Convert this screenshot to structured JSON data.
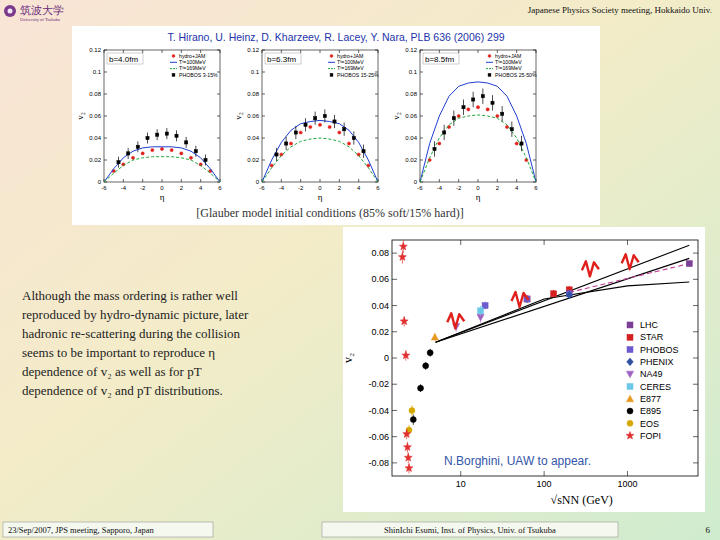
{
  "slide": {
    "logo": "筑波大学",
    "logo_sub": "University of Tsukuba",
    "header_right": "Japanese Physics Society meeting, Hokkaido Univ.",
    "reference": "T. Hirano, U. Heinz, D. Kharzeev, R. Lacey, Y. Nara, PLB 636 (2006) 299",
    "caption": "[Glauber model initial conditions (85% soft/15% hard)]",
    "text_lines": [
      "Although the mass ordering is rather well",
      "reproduced by hydro-dynamic picture, later",
      "hadronic re-scattering during the collision",
      "seems to be important to reproduce η",
      "dependence of v₂ as well as for pT",
      "dependence of v₂ and pT distributions."
    ],
    "footer_left": "23/Sep/2007, JPS meeting, Sapporo, Japan",
    "footer_center": "ShinIchi Esumi, Inst. of Physics, Univ. of Tsukuba",
    "page": "6"
  },
  "chart_data": [
    {
      "type": "scatter",
      "annotation": "b=4.0fm",
      "x_label": "η",
      "y_label": "v₂",
      "xlim": [
        -6,
        6
      ],
      "ylim": [
        0,
        0.12
      ],
      "xticks": [
        -6,
        -4,
        -2,
        0,
        2,
        4,
        6
      ],
      "yticks": [
        0,
        0.02,
        0.04,
        0.06,
        0.08,
        0.1,
        0.12
      ],
      "legend": "upper right",
      "series": [
        {
          "name": "hydro+JAM",
          "type": "scatter",
          "marker": "circle",
          "color": "#e0201c",
          "x": [
            -5,
            -4,
            -3,
            -2,
            -1,
            0,
            1,
            2,
            3,
            4,
            5
          ],
          "values": [
            0.01,
            0.016,
            0.022,
            0.026,
            0.029,
            0.03,
            0.029,
            0.026,
            0.022,
            0.016,
            0.01
          ]
        },
        {
          "name": "Tᶠ=100MeV",
          "type": "line",
          "line_style": "solid",
          "color": "#1f3fd0",
          "x": [
            -6,
            -5,
            -4,
            -3,
            -2,
            -1,
            0,
            1,
            2,
            3,
            4,
            5,
            6
          ],
          "values": [
            0.0,
            0.012,
            0.022,
            0.028,
            0.031,
            0.032,
            0.032,
            0.032,
            0.031,
            0.028,
            0.022,
            0.012,
            0.0
          ]
        },
        {
          "name": "Tᶠ=169MeV",
          "type": "line",
          "line_style": "dashed",
          "color": "#1fa63a",
          "x": [
            -6,
            -5,
            -4,
            -3,
            -2,
            -1,
            0,
            1,
            2,
            3,
            4,
            5,
            6
          ],
          "values": [
            0.0,
            0.008,
            0.015,
            0.02,
            0.022,
            0.023,
            0.023,
            0.023,
            0.022,
            0.02,
            0.015,
            0.008,
            0.0
          ]
        },
        {
          "name": "PHOBOS 3-15%",
          "type": "scatter",
          "marker": "square",
          "color": "#000000",
          "x": [
            -4.5,
            -3.5,
            -2.5,
            -1.5,
            -0.5,
            0.5,
            1.5,
            2.5,
            3.5,
            4.5
          ],
          "values": [
            0.018,
            0.026,
            0.032,
            0.04,
            0.043,
            0.044,
            0.042,
            0.036,
            0.028,
            0.02
          ],
          "errors": [
            0.005,
            0.005,
            0.005,
            0.005,
            0.005,
            0.005,
            0.005,
            0.005,
            0.005,
            0.005
          ]
        }
      ]
    },
    {
      "type": "scatter",
      "annotation": "b=6.3fm",
      "x_label": "η",
      "y_label": "v₂",
      "xlim": [
        -6,
        6
      ],
      "ylim": [
        0,
        0.12
      ],
      "xticks": [
        -6,
        -4,
        -2,
        0,
        2,
        4,
        6
      ],
      "yticks": [
        0,
        0.02,
        0.04,
        0.06,
        0.08,
        0.1,
        0.12
      ],
      "legend": "upper right",
      "series": [
        {
          "name": "hydro+JAM",
          "type": "scatter",
          "marker": "circle",
          "color": "#e0201c",
          "x": [
            -5,
            -4,
            -3,
            -2,
            -1,
            0,
            1,
            2,
            3,
            4,
            5
          ],
          "values": [
            0.015,
            0.025,
            0.035,
            0.045,
            0.05,
            0.052,
            0.05,
            0.045,
            0.035,
            0.025,
            0.015
          ]
        },
        {
          "name": "Tᶠ=100MeV",
          "type": "line",
          "line_style": "solid",
          "color": "#1f3fd0",
          "x": [
            -6,
            -5,
            -4,
            -3,
            -2,
            -1,
            0,
            1,
            2,
            3,
            4,
            5,
            6
          ],
          "values": [
            0.0,
            0.02,
            0.036,
            0.047,
            0.053,
            0.055,
            0.056,
            0.055,
            0.053,
            0.047,
            0.036,
            0.02,
            0.0
          ]
        },
        {
          "name": "Tᶠ=169MeV",
          "type": "line",
          "line_style": "dashed",
          "color": "#1fa63a",
          "x": [
            -6,
            -5,
            -4,
            -3,
            -2,
            -1,
            0,
            1,
            2,
            3,
            4,
            5,
            6
          ],
          "values": [
            0.0,
            0.013,
            0.024,
            0.032,
            0.037,
            0.039,
            0.04,
            0.039,
            0.037,
            0.032,
            0.024,
            0.013,
            0.0
          ]
        },
        {
          "name": "PHOBOS 15-25%",
          "type": "scatter",
          "marker": "square",
          "color": "#000000",
          "x": [
            -4.5,
            -3.5,
            -2.5,
            -1.5,
            -0.5,
            0.5,
            1.5,
            2.5,
            3.5,
            4.5
          ],
          "values": [
            0.025,
            0.035,
            0.045,
            0.052,
            0.058,
            0.06,
            0.055,
            0.048,
            0.04,
            0.028
          ],
          "errors": [
            0.006,
            0.006,
            0.006,
            0.006,
            0.006,
            0.006,
            0.006,
            0.006,
            0.006,
            0.006
          ]
        }
      ]
    },
    {
      "type": "scatter",
      "annotation": "b=8.5fm",
      "x_label": "η",
      "y_label": "v₂",
      "xlim": [
        -6,
        6
      ],
      "ylim": [
        0,
        0.12
      ],
      "xticks": [
        -6,
        -4,
        -2,
        0,
        2,
        4,
        6
      ],
      "yticks": [
        0,
        0.02,
        0.04,
        0.06,
        0.08,
        0.1,
        0.12
      ],
      "legend": "upper right",
      "series": [
        {
          "name": "hydro+JAM",
          "type": "scatter",
          "marker": "circle",
          "color": "#e0201c",
          "x": [
            -5,
            -4,
            -3,
            -2,
            -1,
            0,
            1,
            2,
            3,
            4,
            5
          ],
          "values": [
            0.02,
            0.035,
            0.05,
            0.06,
            0.066,
            0.068,
            0.066,
            0.06,
            0.05,
            0.035,
            0.02
          ]
        },
        {
          "name": "Tᶠ=100MeV",
          "type": "line",
          "line_style": "solid",
          "color": "#1f3fd0",
          "x": [
            -6,
            -5,
            -4,
            -3,
            -2,
            -1,
            0,
            1,
            2,
            3,
            4,
            5,
            6
          ],
          "values": [
            0.0,
            0.035,
            0.06,
            0.078,
            0.087,
            0.09,
            0.091,
            0.09,
            0.087,
            0.078,
            0.06,
            0.035,
            0.0
          ]
        },
        {
          "name": "Tᶠ=169MeV",
          "type": "line",
          "line_style": "dashed",
          "color": "#1fa63a",
          "x": [
            -6,
            -5,
            -4,
            -3,
            -2,
            -1,
            0,
            1,
            2,
            3,
            4,
            5,
            6
          ],
          "values": [
            0.0,
            0.022,
            0.04,
            0.052,
            0.058,
            0.06,
            0.061,
            0.06,
            0.058,
            0.052,
            0.04,
            0.022,
            0.0
          ]
        },
        {
          "name": "PHOBOS 25-50%",
          "type": "scatter",
          "marker": "square",
          "color": "#000000",
          "x": [
            -4.5,
            -3.5,
            -2.5,
            -1.5,
            -0.5,
            0.5,
            1.5,
            2.5,
            3.5,
            4.5
          ],
          "values": [
            0.03,
            0.045,
            0.058,
            0.068,
            0.075,
            0.078,
            0.072,
            0.062,
            0.048,
            0.035
          ],
          "errors": [
            0.007,
            0.007,
            0.007,
            0.007,
            0.007,
            0.007,
            0.007,
            0.007,
            0.007,
            0.007
          ]
        }
      ]
    },
    {
      "type": "scatter",
      "log": "x",
      "annotation": "N.Borghini, UAW to appear.",
      "x_label": "√sNN (GeV)",
      "y_label": "v₂",
      "xlim": [
        1.5,
        7000
      ],
      "ylim": [
        -0.09,
        0.09
      ],
      "xticks": [
        10,
        100,
        1000
      ],
      "yticks": [
        -0.08,
        -0.06,
        -0.04,
        -0.02,
        0,
        0.02,
        0.04,
        0.06,
        0.08
      ],
      "legend": "right",
      "series": [
        {
          "type": "line",
          "line_style": "solid",
          "color": "#000000",
          "x": [
            5,
            5500
          ],
          "values": [
            0.012,
            0.086
          ]
        },
        {
          "type": "line",
          "line_style": "solid",
          "color": "#000000",
          "x": [
            5,
            5500
          ],
          "values": [
            0.012,
            0.076
          ]
        },
        {
          "type": "line",
          "line_style": "solid",
          "color": "#000000",
          "x": [
            5,
            100,
            1000,
            5500
          ],
          "values": [
            0.012,
            0.045,
            0.055,
            0.058
          ]
        },
        {
          "type": "line",
          "line_style": "dashed",
          "color": "#c0409a",
          "x": [
            200,
            5500
          ],
          "values": [
            0.05,
            0.072
          ]
        },
        {
          "name": "LHC",
          "type": "scatter",
          "marker": "square",
          "color": "#7b3f98",
          "x": [
            5500
          ],
          "values": [
            0.072
          ]
        },
        {
          "name": "STAR",
          "type": "scatter",
          "marker": "square",
          "color": "#d42020",
          "x": [
            62.4,
            130,
            200
          ],
          "values": [
            0.045,
            0.049,
            0.052
          ],
          "errors": [
            0.003,
            0.003,
            0.003
          ]
        },
        {
          "name": "PHOBOS",
          "type": "scatter",
          "marker": "square",
          "color": "#6a5acd",
          "x": [
            19.6,
            62.4,
            200
          ],
          "values": [
            0.04,
            0.045,
            0.049
          ],
          "errors": [
            0.003,
            0.003,
            0.003
          ]
        },
        {
          "name": "PHENIX",
          "type": "scatter",
          "marker": "diamond",
          "color": "#3050a0",
          "x": [
            200
          ],
          "values": [
            0.048
          ]
        },
        {
          "name": "NA49",
          "type": "scatter",
          "marker": "triangle-down",
          "color": "#a060c0",
          "x": [
            8.8,
            17.3
          ],
          "values": [
            0.024,
            0.031
          ],
          "errors": [
            0.004,
            0.004
          ]
        },
        {
          "name": "CERES",
          "type": "scatter",
          "marker": "square",
          "color": "#6cc8e8",
          "x": [
            17.3
          ],
          "values": [
            0.036
          ],
          "errors": [
            0.004
          ]
        },
        {
          "name": "E877",
          "type": "scatter",
          "marker": "triangle",
          "color": "#e89a20",
          "x": [
            4.9
          ],
          "values": [
            0.016
          ],
          "errors": [
            0.003
          ]
        },
        {
          "name": "E895",
          "type": "scatter",
          "marker": "circle",
          "color": "#000000",
          "x": [
            2.7,
            3.3,
            3.8,
            4.3
          ],
          "values": [
            -0.047,
            -0.023,
            -0.006,
            0.004
          ],
          "errors": [
            0.004,
            0.003,
            0.003,
            0.003
          ]
        },
        {
          "name": "EOS",
          "type": "scatter",
          "marker": "circle",
          "color": "#d4a800",
          "x": [
            2.4,
            2.6
          ],
          "values": [
            -0.055,
            -0.04
          ],
          "errors": [
            0.004,
            0.004
          ]
        },
        {
          "name": "FOPI",
          "type": "scatter",
          "marker": "star",
          "color": "#e03030",
          "x": [
            2.0,
            2.05,
            2.1,
            2.2,
            2.25,
            2.3,
            2.35,
            2.4
          ],
          "values": [
            0.077,
            0.085,
            0.028,
            0.002,
            -0.058,
            -0.068,
            -0.076,
            -0.084
          ],
          "errors": [
            0.005,
            0.005,
            0.004,
            0.004,
            0.004,
            0.004,
            0.004,
            0.004
          ]
        }
      ]
    }
  ]
}
